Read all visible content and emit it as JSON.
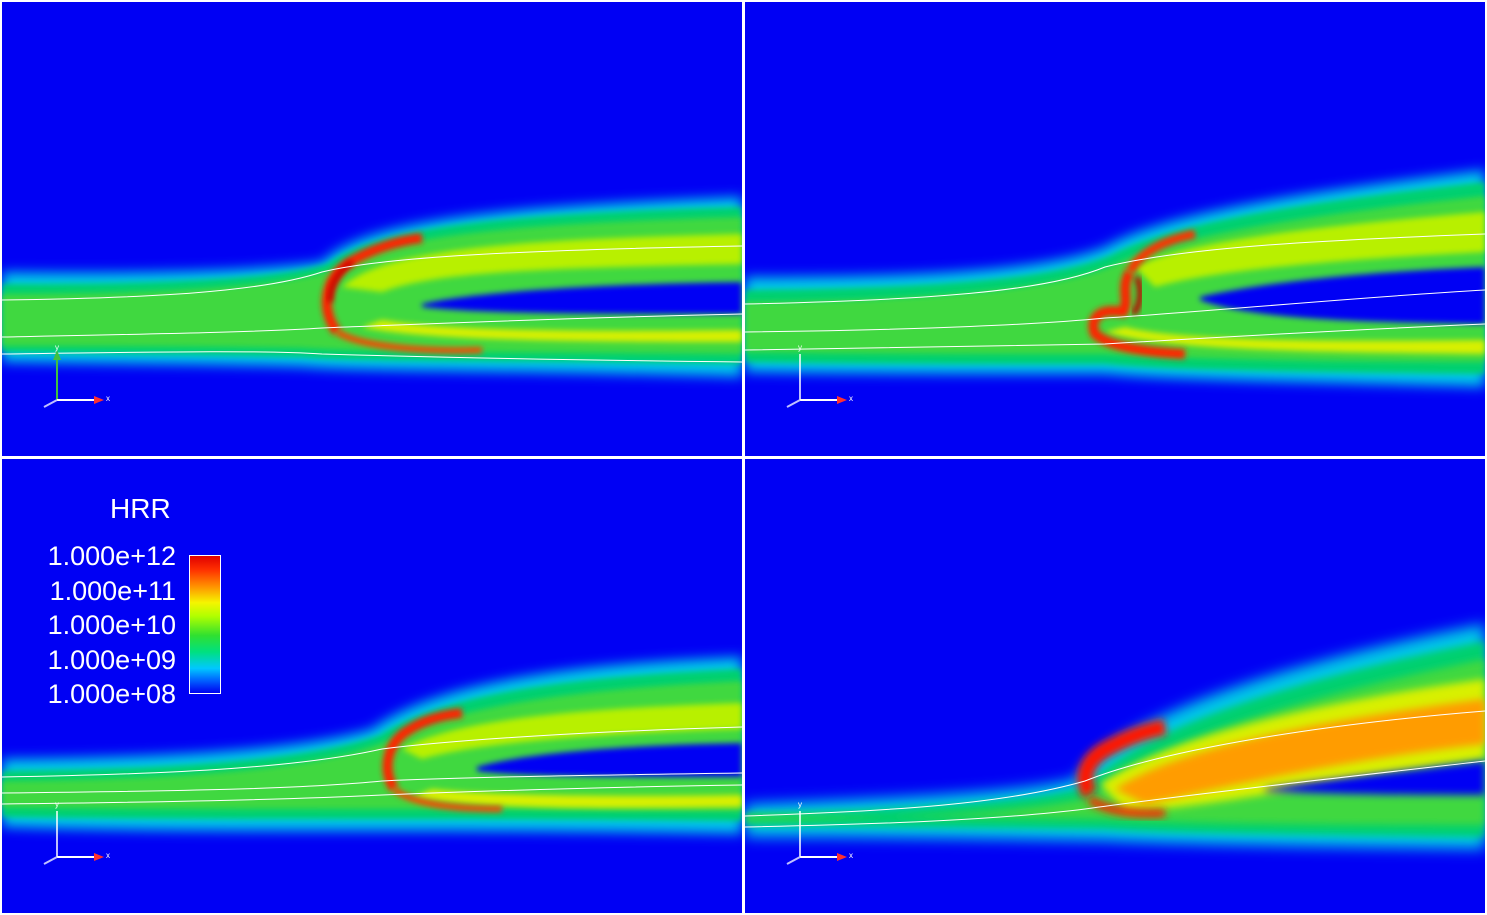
{
  "legend": {
    "title": "HRR",
    "ticks": [
      "1.000e+12",
      "1.000e+11",
      "1.000e+10",
      "1.000e+09",
      "1.000e+08"
    ],
    "colormap": [
      "#e00000",
      "#ff3000",
      "#ff9000",
      "#f5f500",
      "#b0ff00",
      "#30e030",
      "#00e080",
      "#00c8ff",
      "#0060ff",
      "#0000f0"
    ]
  },
  "axes_triad": {
    "x_label": "x",
    "y_label": "y"
  },
  "colors": {
    "background": "#0000f4",
    "separator": "#ffffff"
  },
  "panels": [
    {
      "name": "top-left"
    },
    {
      "name": "top-right"
    },
    {
      "name": "bottom-left"
    },
    {
      "name": "bottom-right"
    }
  ]
}
